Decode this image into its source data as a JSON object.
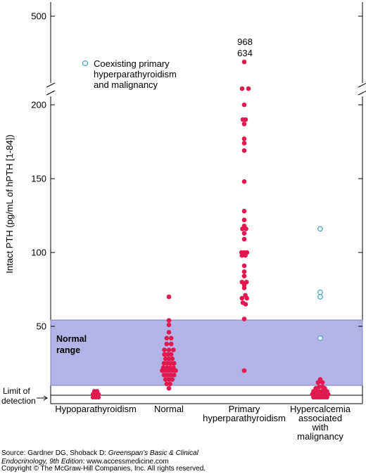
{
  "chart_data": {
    "type": "scatter",
    "ylabel": "Intact PTH (pg/mL of hPTH [1-84])",
    "y_ticks": [
      "500",
      "200",
      "150",
      "100",
      "50"
    ],
    "y_scale": "linear from 0 to 200 with axis break, 500 shown above the break",
    "categories": [
      "Hypoparathyroidism",
      "Normal",
      "Primary hyperparathyroidism",
      "Hypercalcemia associated with malignancy"
    ],
    "category_labels": [
      [
        "Hypoparathyroidism"
      ],
      [
        "Normal"
      ],
      [
        "Primary",
        "hyperparathyroidism"
      ],
      [
        "Hypercalcemia",
        "associated",
        "with",
        "malignancy"
      ]
    ],
    "normal_range": {
      "label": [
        "Normal",
        "range"
      ],
      "from": 10,
      "to": 54
    },
    "limit_of_detection": {
      "label": [
        "Limit of",
        "detection"
      ],
      "value": 3
    },
    "legend": {
      "label": [
        "Coexisting primary",
        "hyperparathyroidism",
        "and malignancy"
      ],
      "marker": "open-circle"
    },
    "colors": {
      "filled": "#e0194f",
      "open": "#4a9fc2",
      "band": "#b3b3e6",
      "band_edge": "#8080c0"
    },
    "above_break_label": [
      "968",
      "634"
    ],
    "series": [
      {
        "category": "Hypoparathyroidism",
        "marker": "filled",
        "points": [
          [
            -0.12,
            2
          ],
          [
            0,
            2
          ],
          [
            0.12,
            2
          ],
          [
            -0.12,
            4
          ],
          [
            0,
            4
          ],
          [
            0.12,
            4
          ],
          [
            -0.06,
            6
          ],
          [
            0.06,
            6
          ]
        ]
      },
      {
        "category": "Normal",
        "marker": "filled",
        "points": [
          [
            0,
            70
          ],
          [
            0,
            54
          ],
          [
            0,
            51
          ],
          [
            0,
            46
          ],
          [
            -0.1,
            42
          ],
          [
            0.1,
            42
          ],
          [
            -0.1,
            38
          ],
          [
            0.1,
            38
          ],
          [
            -0.2,
            34
          ],
          [
            0,
            34
          ],
          [
            0.2,
            34
          ],
          [
            -0.2,
            31
          ],
          [
            -0.05,
            31
          ],
          [
            0.1,
            31
          ],
          [
            -0.15,
            28
          ],
          [
            0,
            28
          ],
          [
            0.15,
            28
          ],
          [
            -0.22,
            25
          ],
          [
            -0.07,
            25
          ],
          [
            0.08,
            25
          ],
          [
            0.23,
            25
          ],
          [
            -0.25,
            22
          ],
          [
            -0.1,
            22
          ],
          [
            0.05,
            22
          ],
          [
            0.2,
            22
          ],
          [
            -0.3,
            20
          ],
          [
            -0.15,
            20
          ],
          [
            0,
            20
          ],
          [
            0.15,
            20
          ],
          [
            0.3,
            20
          ],
          [
            -0.22,
            17
          ],
          [
            -0.07,
            17
          ],
          [
            0.08,
            17
          ],
          [
            0.23,
            17
          ],
          [
            -0.15,
            14
          ],
          [
            0,
            14
          ],
          [
            0.15,
            14
          ],
          [
            -0.1,
            11
          ],
          [
            0.05,
            11
          ],
          [
            0,
            8
          ]
        ]
      },
      {
        "category": "Primary hyperparathyroidism",
        "marker": "filled",
        "points": [
          [
            -0.06,
            190
          ],
          [
            0.06,
            190
          ],
          [
            0,
            200
          ],
          [
            0,
            187
          ],
          [
            0,
            177
          ],
          [
            0,
            174
          ],
          [
            0,
            169
          ],
          [
            0,
            148
          ],
          [
            0,
            128
          ],
          [
            0,
            122
          ],
          [
            0,
            118
          ],
          [
            -0.08,
            116
          ],
          [
            0.08,
            116
          ],
          [
            0,
            113
          ],
          [
            0,
            109
          ],
          [
            -0.12,
            100
          ],
          [
            0,
            100
          ],
          [
            0.12,
            100
          ],
          [
            -0.1,
            98
          ],
          [
            0.05,
            98
          ],
          [
            0,
            91
          ],
          [
            0,
            87
          ],
          [
            0,
            84
          ],
          [
            -0.1,
            80
          ],
          [
            0.1,
            80
          ],
          [
            0,
            78
          ],
          [
            0,
            76
          ],
          [
            0.05,
            71
          ],
          [
            -0.1,
            69
          ],
          [
            0.12,
            69
          ],
          [
            -0.06,
            66
          ],
          [
            0.06,
            65
          ],
          [
            0,
            55
          ],
          [
            0,
            20
          ]
        ]
      },
      {
        "category": "Hypercalcemia associated with malignancy",
        "marker": "filled",
        "points": [
          [
            0,
            14
          ],
          [
            -0.1,
            12
          ],
          [
            0.1,
            12
          ],
          [
            -0.2,
            8
          ],
          [
            -0.05,
            9
          ],
          [
            0.1,
            9
          ],
          [
            0.2,
            8
          ],
          [
            -0.3,
            6
          ],
          [
            -0.18,
            6
          ],
          [
            -0.06,
            6
          ],
          [
            0.06,
            6
          ],
          [
            0.18,
            6
          ],
          [
            0.3,
            6
          ],
          [
            -0.35,
            4
          ],
          [
            -0.25,
            4
          ],
          [
            -0.15,
            4
          ],
          [
            -0.05,
            4
          ],
          [
            0.05,
            4
          ],
          [
            0.15,
            4
          ],
          [
            0.25,
            4
          ],
          [
            0.35,
            4
          ],
          [
            -0.3,
            2
          ],
          [
            -0.2,
            2
          ],
          [
            -0.1,
            2
          ],
          [
            0,
            2
          ],
          [
            0.1,
            2
          ],
          [
            0.2,
            2
          ],
          [
            0.3,
            2
          ]
        ]
      },
      {
        "category": "Hypercalcemia associated with malignancy",
        "marker": "open",
        "points": [
          [
            0,
            116
          ],
          [
            0,
            73
          ],
          [
            0,
            70
          ],
          [
            0,
            42
          ]
        ]
      }
    ]
  },
  "source": {
    "prefix": "Source: Gardner DG, Shoback D: ",
    "title": "Greenspan's Basic & Clinical",
    "title2": "Endocrinology, 9th Edition",
    "suffix": ": www.accessmedicine.com",
    "copyright": "Copyright © The McGraw-Hill Companies, Inc. All rights reserved."
  }
}
